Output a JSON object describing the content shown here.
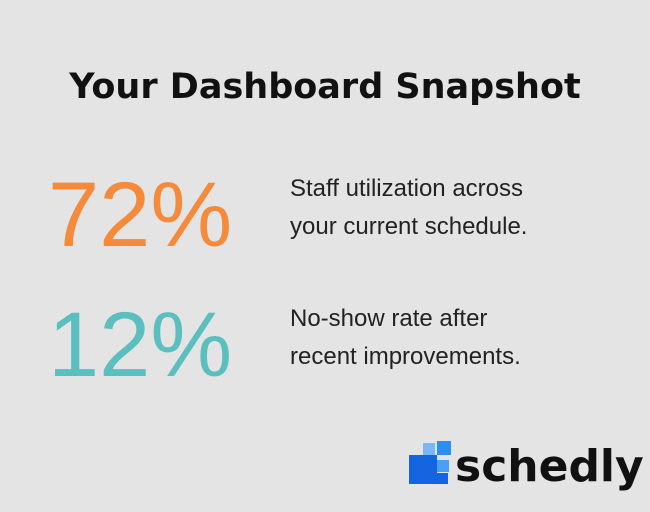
{
  "header": {
    "title": "Your Dashboard Snapshot"
  },
  "stats": [
    {
      "value": "72%",
      "lines": [
        "Staff utilization across",
        "your current schedule."
      ]
    },
    {
      "value": "12%",
      "lines": [
        "No-show rate after",
        "recent improvements."
      ]
    }
  ],
  "brand": {
    "name": "schedly"
  }
}
